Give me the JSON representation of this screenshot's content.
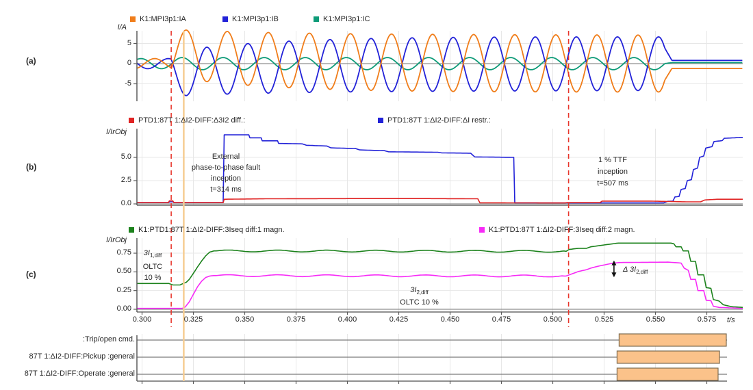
{
  "figure": {
    "background": "#FFFFFF"
  },
  "plot_labels": {
    "a": "(a)",
    "b": "(b)",
    "c": "(c)"
  },
  "time_axis": {
    "unit": "t/s",
    "min": 0.2975,
    "max": 0.5925,
    "ticks": [
      0.3,
      0.325,
      0.35,
      0.375,
      0.4,
      0.425,
      0.45,
      0.475,
      0.5,
      0.525,
      0.55,
      0.575
    ],
    "tick_labels": [
      "0.300",
      "0.325",
      "0.350",
      "0.375",
      "0.400",
      "0.425",
      "0.450",
      "0.475",
      "0.500",
      "0.525",
      "0.550",
      "0.575"
    ]
  },
  "legends": {
    "a": [
      {
        "label": "K1:MPI3p1:IA",
        "color": "#F07D1A"
      },
      {
        "label": "K1:MPI3p1:IB",
        "color": "#2222D8"
      },
      {
        "label": "K1:MPI3p1:IC",
        "color": "#0E9B78"
      }
    ],
    "b": [
      {
        "label": "PTD1:87T 1:ΔI2-DIFF:Δ3I2 diff.:",
        "color": "#E02424"
      },
      {
        "label": "PTD1:87T 1:ΔI2-DIFF:ΔI restr.:",
        "color": "#2222D8"
      }
    ],
    "c": [
      {
        "label": "K1:PTD1:87T 1:ΔI2-DIFF:3Iseq diff:1 magn.",
        "color": "#1C821C"
      },
      {
        "label": "K1:PTD1:87T 1:ΔI2-DIFF:3Iseq diff:2 magn.",
        "color": "#F72AF7"
      }
    ]
  },
  "annotations": {
    "fault": {
      "lines": [
        "External",
        "phase-to-phase fault",
        "inception",
        "t=314 ms"
      ]
    },
    "ttf": {
      "lines": [
        "1 % TTF",
        "inception",
        "t=507 ms"
      ]
    },
    "i1diff": {
      "main": "3I",
      "sub": "1,diff",
      "line2": "OLTC",
      "line3": "10 %"
    },
    "i2diff": {
      "main": "3I",
      "sub": "2,diff",
      "line2": "OLTC 10 %"
    },
    "delta": {
      "main": "Δ 3I",
      "sub": "2,diff"
    }
  },
  "cursors": [
    {
      "t": 0.3142,
      "style": "dashed",
      "color": "#E8352B",
      "extent": "plots",
      "name": "fault-inception-marker"
    },
    {
      "t": 0.5077,
      "style": "dashed",
      "color": "#E8352B",
      "extent": "plots",
      "name": "ttf-inception-marker"
    },
    {
      "t": 0.3203,
      "style": "solid",
      "color": "#F6CD92",
      "extent": "full",
      "name": "time-cursor"
    }
  ],
  "chart_data": [
    {
      "id": "a",
      "type": "line",
      "ylabel": "I/A",
      "yticks": [
        {
          "v": 5,
          "label": "5"
        },
        {
          "v": 0,
          "label": "0"
        },
        {
          "v": -5,
          "label": "-5"
        }
      ],
      "ylim": [
        -8.6,
        8.8
      ],
      "series": [
        {
          "name": "K1:MPI3p1:IC",
          "color": "#0E9B78",
          "phase": "C"
        },
        {
          "name": "K1:MPI3p1:IB",
          "color": "#2222D8",
          "phase": "B"
        },
        {
          "name": "K1:MPI3p1:IA",
          "color": "#F07D1A",
          "phase": "A"
        }
      ],
      "synth": {
        "freq_hz": 50,
        "prefault": {
          "amp": 1.25,
          "peak_time": 0.2995
        },
        "fault": {
          "start": 0.314,
          "end": 0.5545,
          "amp_base": 7.3,
          "amp_dip": 1.4,
          "amp_tau": 0.05,
          "amp_slope": 1.0,
          "dc": 2.6,
          "dc_tau": 0.05,
          "peak_time": 0.3215,
          "c_amp": 1.5
        },
        "post": {
          "start": 0.558,
          "values": {
            "A": -1.2,
            "B": 0.8,
            "C": 0.25
          }
        }
      }
    },
    {
      "id": "b",
      "type": "line",
      "ylabel": "I/IrObj",
      "yticks": [
        {
          "v": 5,
          "label": "5.0"
        },
        {
          "v": 2.5,
          "label": "2.5"
        },
        {
          "v": 0,
          "label": "0.0"
        }
      ],
      "ylim": [
        -0.2,
        8.2
      ],
      "series": [
        {
          "name": "PTD1:87T 1:ΔI2-DIFF:ΔI restr.:",
          "color": "#2222D8",
          "points": [
            [
              0.2975,
              0.15
            ],
            [
              0.313,
              0.15
            ],
            [
              0.3135,
              0.22
            ],
            [
              0.315,
              0.22
            ],
            [
              0.3155,
              0.15
            ],
            [
              0.3395,
              0.15
            ],
            [
              0.34,
              7.42
            ],
            [
              0.352,
              7.42
            ],
            [
              0.3525,
              7.1
            ],
            [
              0.358,
              7.1
            ],
            [
              0.3585,
              6.78
            ],
            [
              0.366,
              6.78
            ],
            [
              0.3665,
              6.5
            ],
            [
              0.378,
              6.45
            ],
            [
              0.38,
              6.3
            ],
            [
              0.39,
              6.22
            ],
            [
              0.392,
              6.02
            ],
            [
              0.404,
              5.95
            ],
            [
              0.406,
              5.8
            ],
            [
              0.418,
              5.72
            ],
            [
              0.42,
              5.6
            ],
            [
              0.444,
              5.55
            ],
            [
              0.446,
              5.48
            ],
            [
              0.46,
              5.45
            ],
            [
              0.462,
              5.05
            ],
            [
              0.481,
              5.0
            ],
            [
              0.4815,
              0.12
            ],
            [
              0.52,
              0.1
            ],
            [
              0.554,
              0.1
            ],
            [
              0.556,
              0.28
            ],
            [
              0.5585,
              0.3
            ],
            [
              0.5595,
              0.75
            ],
            [
              0.5615,
              0.8
            ],
            [
              0.5625,
              1.55
            ],
            [
              0.5645,
              1.65
            ],
            [
              0.5655,
              2.5
            ],
            [
              0.5675,
              2.6
            ],
            [
              0.5685,
              3.7
            ],
            [
              0.5705,
              3.85
            ],
            [
              0.5715,
              5.0
            ],
            [
              0.5735,
              5.15
            ],
            [
              0.5745,
              6.0
            ],
            [
              0.5775,
              6.15
            ],
            [
              0.5785,
              6.7
            ],
            [
              0.5825,
              6.8
            ],
            [
              0.5835,
              7.05
            ],
            [
              0.5925,
              7.15
            ]
          ]
        },
        {
          "name": "PTD1:87T 1:ΔI2-DIFF:Δ3I2 diff.:",
          "color": "#E02424",
          "points": [
            [
              0.2975,
              0.13
            ],
            [
              0.3128,
              0.13
            ],
            [
              0.3133,
              0.32
            ],
            [
              0.315,
              0.32
            ],
            [
              0.3155,
              0.13
            ],
            [
              0.3395,
              0.13
            ],
            [
              0.34,
              0.5
            ],
            [
              0.36,
              0.55
            ],
            [
              0.4,
              0.57
            ],
            [
              0.44,
              0.57
            ],
            [
              0.4635,
              0.55
            ],
            [
              0.4645,
              0.12
            ],
            [
              0.506,
              0.1
            ],
            [
              0.507,
              0.14
            ],
            [
              0.523,
              0.14
            ],
            [
              0.524,
              0.3
            ],
            [
              0.548,
              0.3
            ],
            [
              0.556,
              0.26
            ],
            [
              0.565,
              0.22
            ],
            [
              0.572,
              0.22
            ],
            [
              0.574,
              0.42
            ],
            [
              0.58,
              0.5
            ],
            [
              0.5925,
              0.5
            ]
          ]
        }
      ]
    },
    {
      "id": "c",
      "type": "line",
      "ylabel": "I/IrObj",
      "yticks": [
        {
          "v": 0.75,
          "label": "0.75"
        },
        {
          "v": 0.5,
          "label": "0.50"
        },
        {
          "v": 0.25,
          "label": "0.25"
        },
        {
          "v": 0,
          "label": "0.00"
        }
      ],
      "ylim": [
        -0.02,
        0.97
      ],
      "series": [
        {
          "name": "K1:PTD1:87T 1:ΔI2-DIFF:3Iseq diff:2 magn.",
          "color": "#F72AF7",
          "ripple": {
            "amp": 0.012,
            "period": 0.024,
            "from": 0.336,
            "to": 0.505
          },
          "points": [
            [
              0.2975,
              0.012
            ],
            [
              0.3195,
              0.012
            ],
            [
              0.321,
              0.03
            ],
            [
              0.323,
              0.1
            ],
            [
              0.325,
              0.2
            ],
            [
              0.327,
              0.3
            ],
            [
              0.329,
              0.375
            ],
            [
              0.331,
              0.425
            ],
            [
              0.333,
              0.445
            ],
            [
              0.335,
              0.45
            ],
            [
              0.5065,
              0.445
            ],
            [
              0.509,
              0.47
            ],
            [
              0.5125,
              0.505
            ],
            [
              0.5165,
              0.53
            ],
            [
              0.5185,
              0.55
            ],
            [
              0.522,
              0.575
            ],
            [
              0.5255,
              0.595
            ],
            [
              0.529,
              0.615
            ],
            [
              0.5325,
              0.625
            ],
            [
              0.556,
              0.63
            ],
            [
              0.559,
              0.625
            ],
            [
              0.5625,
              0.618
            ],
            [
              0.564,
              0.55
            ],
            [
              0.566,
              0.52
            ],
            [
              0.5672,
              0.4
            ],
            [
              0.5695,
              0.4
            ],
            [
              0.5707,
              0.25
            ],
            [
              0.5735,
              0.25
            ],
            [
              0.5747,
              0.12
            ],
            [
              0.577,
              0.115
            ],
            [
              0.5782,
              0.04
            ],
            [
              0.581,
              0.025
            ],
            [
              0.5925,
              0.012
            ]
          ]
        },
        {
          "name": "K1:PTD1:87T 1:ΔI2-DIFF:3Iseq diff:1 magn.",
          "color": "#1C821C",
          "ripple": {
            "amp": 0.012,
            "period": 0.024,
            "from": 0.336,
            "to": 0.506
          },
          "points": [
            [
              0.2975,
              0.345
            ],
            [
              0.313,
              0.345
            ],
            [
              0.315,
              0.325
            ],
            [
              0.3185,
              0.325
            ],
            [
              0.32,
              0.345
            ],
            [
              0.3215,
              0.36
            ],
            [
              0.323,
              0.4
            ],
            [
              0.325,
              0.48
            ],
            [
              0.327,
              0.565
            ],
            [
              0.329,
              0.645
            ],
            [
              0.331,
              0.715
            ],
            [
              0.333,
              0.765
            ],
            [
              0.335,
              0.78
            ],
            [
              0.5065,
              0.775
            ],
            [
              0.508,
              0.8
            ],
            [
              0.5125,
              0.815
            ],
            [
              0.5165,
              0.815
            ],
            [
              0.5185,
              0.835
            ],
            [
              0.525,
              0.86
            ],
            [
              0.529,
              0.875
            ],
            [
              0.532,
              0.885
            ],
            [
              0.5575,
              0.885
            ],
            [
              0.559,
              0.875
            ],
            [
              0.56,
              0.835
            ],
            [
              0.5625,
              0.835
            ],
            [
              0.5635,
              0.78
            ],
            [
              0.566,
              0.78
            ],
            [
              0.5672,
              0.64
            ],
            [
              0.5695,
              0.64
            ],
            [
              0.5707,
              0.46
            ],
            [
              0.5735,
              0.46
            ],
            [
              0.5747,
              0.29
            ],
            [
              0.577,
              0.28
            ],
            [
              0.5782,
              0.13
            ],
            [
              0.581,
              0.11
            ],
            [
              0.583,
              0.06
            ],
            [
              0.587,
              0.035
            ],
            [
              0.5925,
              0.025
            ]
          ]
        }
      ],
      "delta_arrow": {
        "t": 0.5298,
        "v_from": 0.455,
        "v_to": 0.625
      }
    },
    {
      "id": "digital",
      "type": "digital",
      "bar_fill": "#FBC28A",
      "bar_stroke": "#7D6B50",
      "rows": [
        {
          "label": ":Trip/open cmd.",
          "on": [
            0.5323,
            0.5845
          ]
        },
        {
          "label": "87T 1:ΔI2-DIFF:Pickup :general",
          "on": [
            0.5313,
            0.5812
          ]
        },
        {
          "label": "87T 1:ΔI2-DIFF:Operate :general",
          "on": [
            0.5313,
            0.5805
          ]
        }
      ]
    }
  ]
}
